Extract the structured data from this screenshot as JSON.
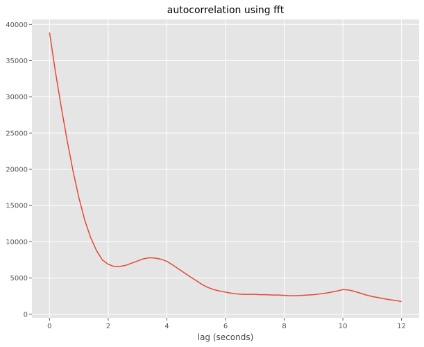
{
  "chart_data": {
    "type": "line",
    "title": "autocorrelation using fft",
    "xlabel": "lag (seconds)",
    "ylabel": "",
    "xlim": [
      -0.6,
      12.6
    ],
    "ylim": [
      -500,
      40700
    ],
    "xticks": [
      0,
      2,
      4,
      6,
      8,
      10,
      12
    ],
    "xtick_labels": [
      "0",
      "2",
      "4",
      "6",
      "8",
      "10",
      "12"
    ],
    "yticks": [
      0,
      5000,
      10000,
      15000,
      20000,
      25000,
      30000,
      35000,
      40000
    ],
    "ytick_labels": [
      "0",
      "5000",
      "10000",
      "15000",
      "20000",
      "25000",
      "30000",
      "35000",
      "40000"
    ],
    "grid": true,
    "background": "#e5e5e5",
    "grid_color": "#ffffff",
    "series": [
      {
        "color": "#e24a33",
        "x": [
          0,
          0.2,
          0.4,
          0.6,
          0.8,
          1.0,
          1.2,
          1.4,
          1.6,
          1.8,
          2.0,
          2.2,
          2.4,
          2.6,
          2.8,
          3.0,
          3.2,
          3.4,
          3.6,
          3.8,
          4.0,
          4.2,
          4.4,
          4.6,
          4.8,
          5.0,
          5.2,
          5.4,
          5.6,
          5.8,
          6.0,
          6.2,
          6.4,
          6.6,
          6.8,
          7.0,
          7.2,
          7.4,
          7.6,
          7.8,
          8.0,
          8.2,
          8.4,
          8.6,
          8.8,
          9.0,
          9.2,
          9.4,
          9.6,
          9.8,
          10.0,
          10.2,
          10.4,
          10.6,
          10.8,
          11.0,
          11.2,
          11.4,
          11.6,
          11.8,
          12.0
        ],
        "y": [
          38900,
          33500,
          28600,
          24000,
          19800,
          16100,
          13000,
          10600,
          8800,
          7500,
          6900,
          6600,
          6600,
          6750,
          7050,
          7350,
          7650,
          7800,
          7750,
          7600,
          7300,
          6800,
          6250,
          5700,
          5150,
          4650,
          4100,
          3700,
          3400,
          3200,
          3050,
          2900,
          2800,
          2750,
          2750,
          2750,
          2700,
          2700,
          2650,
          2650,
          2600,
          2550,
          2550,
          2600,
          2650,
          2700,
          2800,
          2900,
          3050,
          3200,
          3400,
          3350,
          3150,
          2900,
          2650,
          2450,
          2300,
          2150,
          2000,
          1900,
          1750
        ]
      }
    ]
  }
}
